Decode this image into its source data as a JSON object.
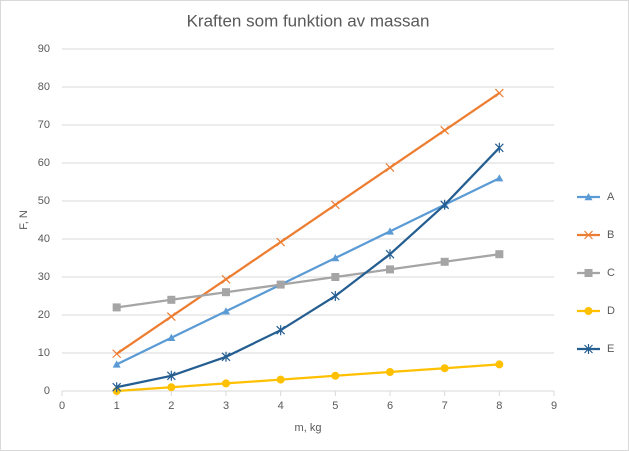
{
  "chart_data": {
    "type": "line",
    "title": "Kraften som funktion av massan",
    "x_label": "m, kg",
    "y_label": "F, N",
    "x": [
      1,
      2,
      3,
      4,
      5,
      6,
      7,
      8
    ],
    "series": [
      {
        "name": "A",
        "color": "#5b9bd5",
        "marker": "triangle",
        "values": [
          7,
          14,
          21,
          28,
          35,
          42,
          49,
          56
        ]
      },
      {
        "name": "B",
        "color": "#ed7d31",
        "marker": "x",
        "values": [
          9.8,
          19.6,
          29.4,
          39.2,
          49,
          58.8,
          68.6,
          78.4
        ]
      },
      {
        "name": "C",
        "color": "#a5a5a5",
        "marker": "square",
        "values": [
          22,
          24,
          26,
          28,
          30,
          32,
          34,
          36
        ]
      },
      {
        "name": "D",
        "color": "#ffc000",
        "marker": "circle",
        "values": [
          0,
          1,
          2,
          3,
          4,
          5,
          6,
          7
        ]
      },
      {
        "name": "E",
        "color": "#255e91",
        "marker": "star",
        "values": [
          1,
          4,
          9,
          16,
          25,
          36,
          49,
          64
        ]
      }
    ],
    "xlim": [
      0,
      9
    ],
    "xticks": [
      0,
      1,
      2,
      3,
      4,
      5,
      6,
      7,
      8,
      9
    ],
    "ylim": [
      0,
      90
    ],
    "yticks": [
      0,
      10,
      20,
      30,
      40,
      50,
      60,
      70,
      80,
      90
    ],
    "grid": true,
    "legend": "right"
  }
}
